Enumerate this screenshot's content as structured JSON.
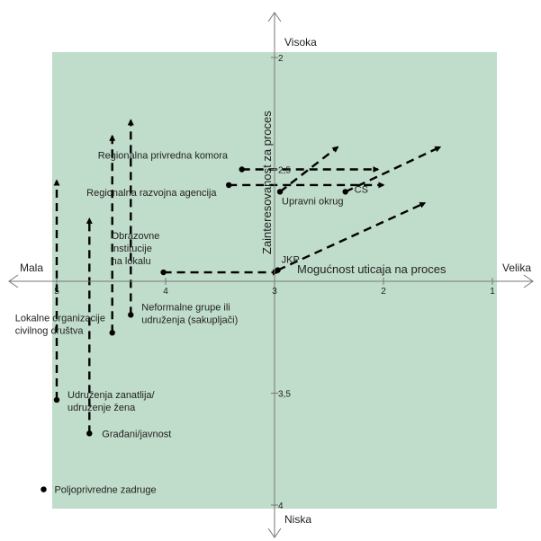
{
  "chart_data": {
    "type": "scatter",
    "title": "",
    "xlabel": "Mogućnost uticaja na proces",
    "ylabel": "Zainteresovanost za proces",
    "x_axis": {
      "range": [
        5.2,
        0.9
      ],
      "reversed": true,
      "ticks": [
        "5",
        "4",
        "3",
        "2",
        "1"
      ],
      "left_label": "Mala",
      "right_label": "Velika"
    },
    "y_axis": {
      "range": [
        1.95,
        4.05
      ],
      "reversed": true,
      "ticks": [
        "2",
        "2,5",
        "3",
        "3,5",
        "4"
      ],
      "top_label": "Visoka",
      "bottom_label": "Niska"
    },
    "background": "#c0dcca",
    "accent": "#000000",
    "points": [
      {
        "label": "Regionalna privredna komora",
        "lines": [
          "Regionalna privredna komora"
        ],
        "x": 3.3,
        "y": 2.5,
        "ex": 2.05,
        "ey": 2.5
      },
      {
        "label": "Regionalna razvojna agencija",
        "lines": [
          "Regionalna razvojna agencija"
        ],
        "x": 3.42,
        "y": 2.57,
        "ex": 2.0,
        "ey": 2.57
      },
      {
        "label": "Upravni okrug",
        "lines": [
          "Upravni okrug"
        ],
        "x": 2.95,
        "y": 2.6,
        "ex": 2.42,
        "ey": 2.4
      },
      {
        "label": "CS",
        "lines": [
          "CS"
        ],
        "x": 2.35,
        "y": 2.6,
        "ex": 1.48,
        "ey": 2.4
      },
      {
        "label": "JKP",
        "lines": [
          "JKP"
        ],
        "x": 2.97,
        "y": 2.95,
        "ex": 1.62,
        "ey": 2.65
      },
      {
        "label": "Obrazovne institucije na lokalu",
        "lines": [
          "Obrazovne",
          "institucije",
          "na lokalu"
        ],
        "x": 4.02,
        "y": 2.96,
        "ex": 2.97,
        "ey": 2.96
      },
      {
        "label": "Neformalne grupe ili udruženja (sakupljači)",
        "lines": [
          "Neformalne grupe ili",
          "udruženja (sakupljači)"
        ],
        "x": 4.32,
        "y": 3.15,
        "ex": 4.32,
        "ey": 2.28
      },
      {
        "label": "Lokalne organizacije civilnog društva",
        "lines": [
          "Lokalne organizacije",
          "civilnog društva"
        ],
        "x": 4.49,
        "y": 3.23,
        "ex": 4.49,
        "ey": 2.35
      },
      {
        "label": "Udruženja zanatlija/ udruženje žena",
        "lines": [
          "Udruženja zanatlija/",
          "udruženje žena"
        ],
        "x": 5.0,
        "y": 3.53,
        "ex": 5.0,
        "ey": 2.55
      },
      {
        "label": "Građani/javnost",
        "lines": [
          "Građani/javnost"
        ],
        "x": 4.7,
        "y": 3.68,
        "ex": 4.7,
        "ey": 2.72
      },
      {
        "label": "Poljoprivredne zadruge",
        "lines": [
          "Poljoprivredne zadruge"
        ],
        "x": 5.12,
        "y": 3.93
      }
    ]
  }
}
